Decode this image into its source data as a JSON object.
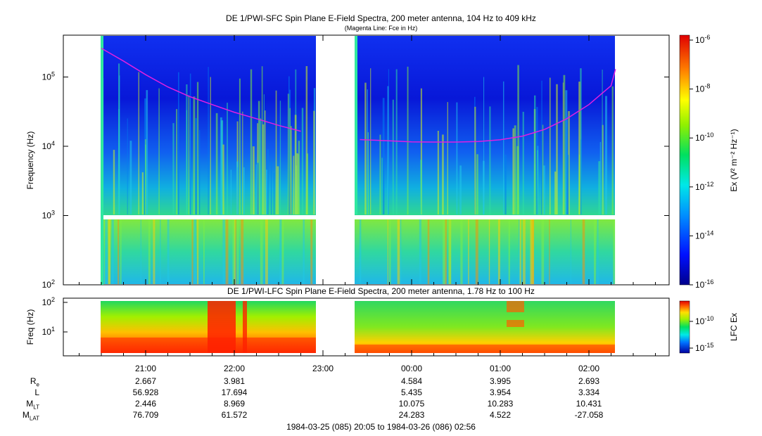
{
  "upper": {
    "title": "DE 1/PWI-SFC  Spin Plane E-Field Spectra, 200 meter antenna, 104 Hz to 409 kHz",
    "subtitle": "(Magenta Line: Fce in Hz)",
    "ylabel": "Frequency (Hz)",
    "yticks": [
      {
        "base": "10",
        "exp": "2"
      },
      {
        "base": "10",
        "exp": "3"
      },
      {
        "base": "10",
        "exp": "4"
      },
      {
        "base": "10",
        "exp": "5"
      }
    ],
    "colorbar_label": "Ex (V² m⁻² Hz⁻¹)",
    "colorbar_ticks": [
      {
        "base": "10",
        "exp": "-6"
      },
      {
        "base": "10",
        "exp": "-8"
      },
      {
        "base": "10",
        "exp": "-10"
      },
      {
        "base": "10",
        "exp": "-12"
      },
      {
        "base": "10",
        "exp": "-14"
      },
      {
        "base": "10",
        "exp": "-16"
      }
    ]
  },
  "lower": {
    "title": "DE 1/PWI-LFC  Spin Plane E-Field Spectra, 200 meter antenna, 1.78 Hz to 100 Hz",
    "ylabel": "Freq (Hz)",
    "yticks": [
      {
        "base": "10",
        "exp": "1"
      },
      {
        "base": "10",
        "exp": "2"
      }
    ],
    "colorbar_label": "LFC Ex",
    "colorbar_ticks": [
      {
        "base": "10",
        "exp": "-10"
      },
      {
        "base": "10",
        "exp": "-15"
      }
    ]
  },
  "xaxis": {
    "tick_labels": [
      "21:00",
      "22:00",
      "23:00",
      "00:00",
      "01:00",
      "02:00"
    ]
  },
  "ephemeris": {
    "rows": [
      {
        "name": "R",
        "sub": "e",
        "values": [
          "2.667",
          "3.981",
          "",
          "4.584",
          "3.995",
          "2.693"
        ]
      },
      {
        "name": "L",
        "sub": "",
        "values": [
          "56.928",
          "17.694",
          "",
          "5.435",
          "3.954",
          "3.334"
        ]
      },
      {
        "name": "M",
        "sub": "LT",
        "values": [
          "2.446",
          "8.969",
          "",
          "10.075",
          "10.283",
          "10.431"
        ]
      },
      {
        "name": "M",
        "sub": "LAT",
        "values": [
          "76.709",
          "61.572",
          "",
          "24.283",
          "4.522",
          "-27.058"
        ]
      }
    ]
  },
  "time_range": "1984-03-25 (085) 20:05 to 1984-03-26 (086) 02:56",
  "chart_data": [
    {
      "type": "heatmap",
      "title": "DE 1/PWI-SFC  Spin Plane E-Field Spectra, 200 meter antenna, 104 Hz to 409 kHz",
      "subtitle": "(Magenta Line: Fce in Hz)",
      "xlabel": "",
      "ylabel": "Frequency (Hz)",
      "x_range": [
        "1984-03-25 20:05",
        "1984-03-26 02:56"
      ],
      "ylim": [
        100,
        409000
      ],
      "yscale": "log",
      "colorbar": {
        "label": "Ex (V² m⁻² Hz⁻¹)",
        "range": [
          1e-16,
          1e-06
        ],
        "scale": "log",
        "colormap": "rainbow"
      },
      "data_gaps": [
        [
          "before",
          "20:30"
        ],
        [
          "22:55",
          "23:25"
        ],
        [
          "02:20",
          "after"
        ]
      ],
      "series": [
        {
          "name": "Fce",
          "color": "#e020e0",
          "x": [
            "20:30",
            "20:45",
            "21:00",
            "21:15",
            "21:30",
            "21:45",
            "22:00",
            "22:15",
            "22:30",
            "22:45",
            "23:25",
            "23:45",
            "00:00",
            "00:15",
            "00:30",
            "00:45",
            "01:00",
            "01:15",
            "01:30",
            "01:45",
            "02:00",
            "02:15",
            "02:18"
          ],
          "y": [
            260000,
            170000,
            108000,
            72000,
            52000,
            40000,
            31000,
            25000,
            20000,
            16500,
            12500,
            12000,
            11600,
            11500,
            11500,
            11700,
            12400,
            14000,
            17500,
            25000,
            40000,
            75000,
            130000
          ]
        }
      ]
    },
    {
      "type": "heatmap",
      "title": "DE 1/PWI-LFC  Spin Plane E-Field Spectra, 200 meter antenna, 1.78 Hz to 100 Hz",
      "xlabel": "",
      "ylabel": "Freq (Hz)",
      "x_range": [
        "1984-03-25 20:05",
        "1984-03-26 02:56"
      ],
      "ylim": [
        1.78,
        100
      ],
      "yscale": "log",
      "colorbar": {
        "label": "LFC Ex",
        "range": [
          1e-17,
          1e-07
        ],
        "scale": "log",
        "colormap": "rainbow"
      },
      "data_gaps": [
        [
          "before",
          "20:30"
        ],
        [
          "22:55",
          "23:25"
        ],
        [
          "02:20",
          "after"
        ]
      ]
    }
  ]
}
